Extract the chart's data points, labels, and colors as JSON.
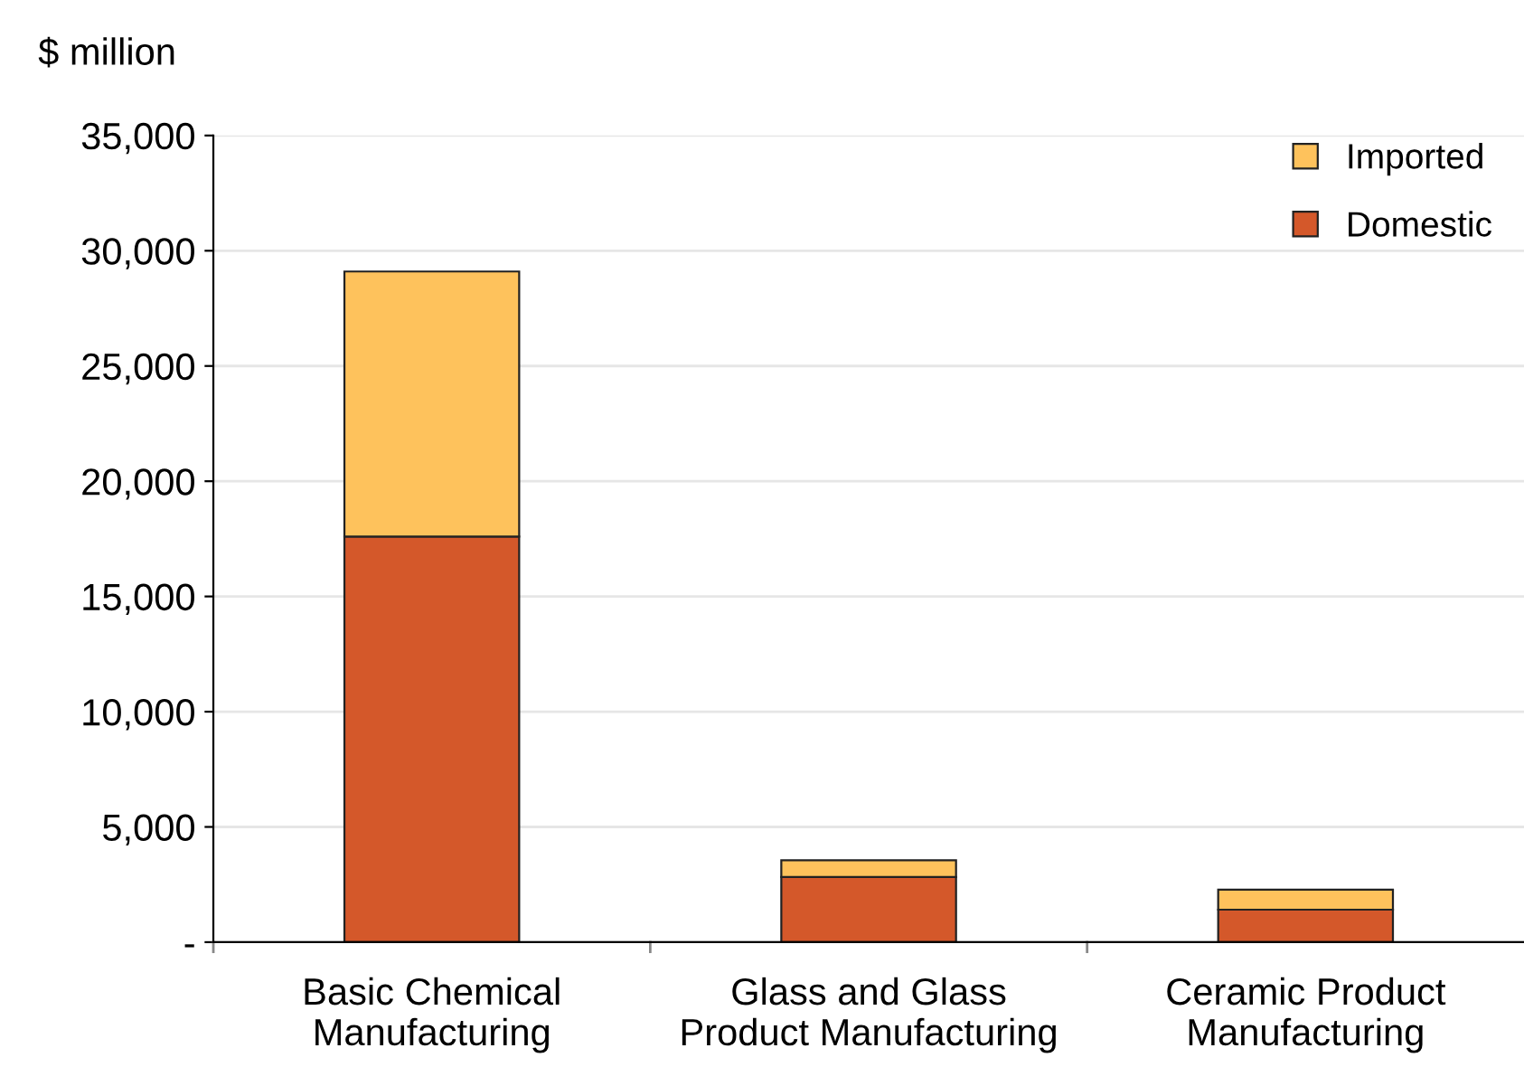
{
  "chart_data": {
    "type": "bar",
    "stacked": true,
    "ylabel": "$ million",
    "categories": [
      "Basic Chemical\nManufacturing",
      "Glass and Glass\nProduct Manufacturing",
      "Ceramic Product\nManufacturing"
    ],
    "series": [
      {
        "name": "Domestic",
        "color": "#d4582a",
        "values": [
          17600,
          2830,
          1410
        ]
      },
      {
        "name": "Imported",
        "color": "#fec25c",
        "values": [
          11500,
          720,
          870
        ]
      }
    ],
    "ylim": [
      0,
      35000
    ],
    "yticks": [
      {
        "value": 0,
        "label": "-"
      },
      {
        "value": 5000,
        "label": "5,000"
      },
      {
        "value": 10000,
        "label": "10,000"
      },
      {
        "value": 15000,
        "label": "15,000"
      },
      {
        "value": 20000,
        "label": "20,000"
      },
      {
        "value": 25000,
        "label": "25,000"
      },
      {
        "value": 30000,
        "label": "30,000"
      },
      {
        "value": 35000,
        "label": "35,000"
      }
    ],
    "grid": "y",
    "legend": "top right"
  }
}
